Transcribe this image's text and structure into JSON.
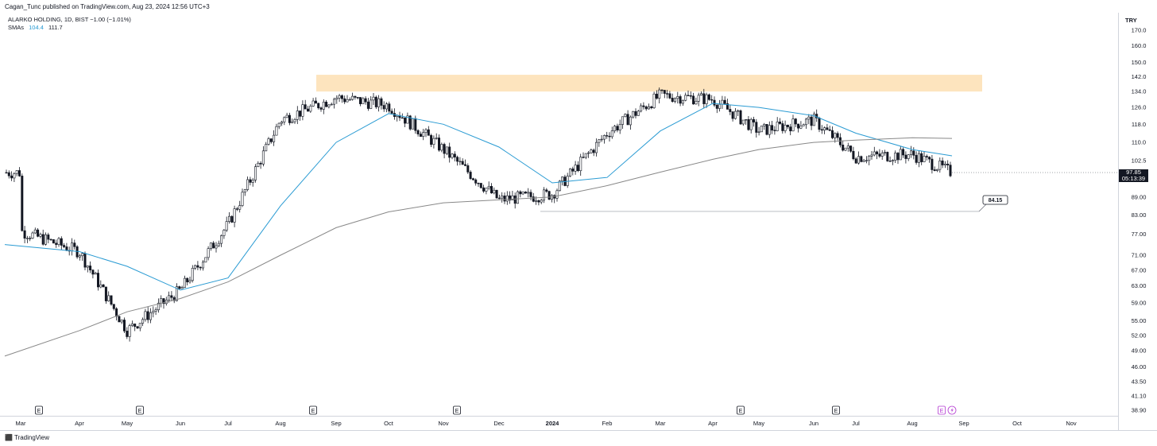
{
  "header": {
    "published": "Cagan_Tunc published on TradingView.com, Aug 23, 2024 12:56 UTC+3",
    "symbol_line": "ALARKO HOLDING, 1D, BIST  −1.00 (−1.01%)",
    "sma_label": "SMAs",
    "sma_values": [
      "104.4",
      "111.7"
    ]
  },
  "footer": {
    "brand": "TradingView"
  },
  "axis": {
    "currency": "TRY",
    "current_price": "97.85",
    "countdown": "05:13:39",
    "price_ticks": [
      "170.0",
      "160.0",
      "150.0",
      "142.0",
      "134.0",
      "126.0",
      "118.0",
      "110.0",
      "102.5",
      "89.00",
      "83.00",
      "77.00",
      "71.00",
      "67.00",
      "63.00",
      "59.00",
      "55.00",
      "52.00",
      "49.00",
      "46.00",
      "43.50",
      "41.10",
      "38.90"
    ],
    "time_ticks": [
      "Mar",
      "Apr",
      "May",
      "Jun",
      "Jul",
      "Aug",
      "Sep",
      "Oct",
      "Nov",
      "Dec",
      "2024",
      "Feb",
      "Mar",
      "Apr",
      "May",
      "Jun",
      "Jul",
      "Aug",
      "Sep",
      "Oct",
      "Nov"
    ]
  },
  "colors": {
    "candle": "#131722",
    "sma_fast": "#2a9bd3",
    "sma_slow": "#888888",
    "zone": "#fde4be",
    "badge": "#b43ad1"
  },
  "chart_data": {
    "type": "line",
    "symbol": "ALARKO HOLDING",
    "timeframe": "1D",
    "exchange": "BIST",
    "y_scale": "log",
    "ylim": [
      38.9,
      170.0
    ],
    "x": [
      "Mar",
      "Apr",
      "May",
      "Jun",
      "Jul",
      "Aug",
      "Sep",
      "Oct",
      "Nov",
      "Dec",
      "2024",
      "Feb",
      "Mar",
      "Apr",
      "May",
      "Jun",
      "Jul",
      "Aug",
      "Sep"
    ],
    "series": [
      {
        "name": "Close (approx.)",
        "values": [
          78,
          72,
          53,
          62,
          80,
          120,
          131,
          127,
          107,
          88,
          90,
          114,
          132,
          130,
          115,
          120,
          104,
          105,
          97.85
        ]
      },
      {
        "name": "SMA 104.4",
        "values": [
          74,
          72,
          68,
          62,
          65,
          86,
          110,
          123,
          118,
          108,
          94,
          96,
          115,
          128,
          126,
          122,
          114,
          107,
          104.4
        ]
      },
      {
        "name": "SMA 111.7",
        "values": [
          48,
          53,
          57,
          60,
          64,
          71,
          79,
          84,
          87,
          88,
          89,
          93,
          98,
          103,
          107,
          110,
          111,
          112,
          111.7
        ]
      }
    ],
    "annotations": {
      "resistance_zone": [
        134.0,
        143.0
      ],
      "support_label": "84.15",
      "support_level": 84.15,
      "earnings_markers": [
        "May",
        "Aug",
        "Nov",
        "Apr",
        "Jun",
        "Aug"
      ]
    }
  }
}
